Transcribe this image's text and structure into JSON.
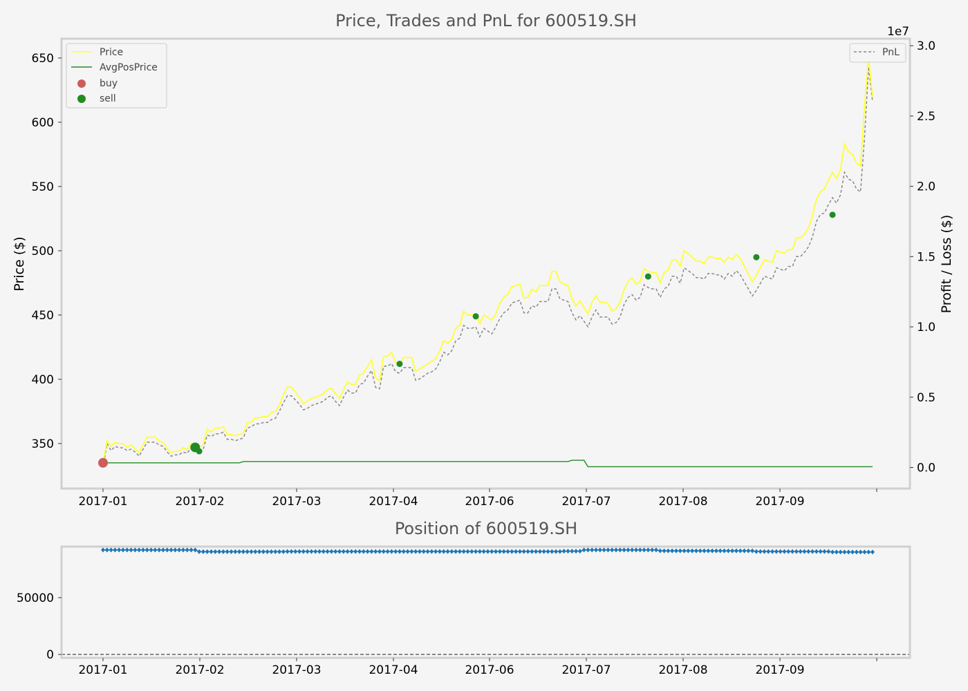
{
  "chart_data": [
    {
      "type": "line",
      "title": "Price, Trades and PnL for 600519.SH",
      "xlabel": "",
      "ylabel": "Price ($)",
      "y2label": "Profit / Loss ($)",
      "y2_exponent": "1e7",
      "ylim": [
        315,
        665
      ],
      "y2lim": [
        -0.15,
        3.05
      ],
      "yticks": [
        350,
        400,
        450,
        500,
        550,
        600,
        650
      ],
      "y2ticks": [
        "0.0",
        "0.5",
        "1.0",
        "1.5",
        "2.0",
        "2.5",
        "3.0"
      ],
      "x_tick_labels": [
        "2017-01",
        "2017-02",
        "2017-03",
        "2017-04",
        "2017-06",
        "2017-07",
        "2017-08",
        "2017-09"
      ],
      "legend_left": [
        "Price",
        "AvgPosPrice",
        "buy",
        "sell"
      ],
      "legend_right": [
        "PnL"
      ],
      "legend_left_position": "upper-left",
      "legend_right_position": "upper-right",
      "grid": false,
      "colors": {
        "price": "#ffff33",
        "avgpos": "#228b22",
        "pnl": "#888888",
        "buy": "#cd5c5c",
        "sell": "#228b22"
      },
      "series": [
        {
          "name": "Price",
          "y": [
            335,
            352,
            348,
            351,
            350,
            350,
            347,
            349,
            346,
            343,
            349,
            355,
            355,
            355,
            352,
            351,
            346,
            343,
            344,
            344,
            347,
            345,
            350,
            350,
            348,
            349,
            361,
            359,
            362,
            362,
            363,
            357,
            357,
            356,
            357,
            358,
            366,
            367,
            370,
            370,
            371,
            371,
            374,
            375,
            380,
            388,
            394,
            394,
            390,
            386,
            381,
            383,
            385,
            386,
            387,
            389,
            392,
            393,
            389,
            385,
            392,
            398,
            396,
            396,
            403,
            405,
            410,
            415,
            401,
            399,
            418,
            418,
            421,
            413,
            412,
            417,
            417,
            417,
            406,
            408,
            410,
            412,
            414,
            416,
            422,
            430,
            428,
            431,
            440,
            442,
            453,
            450,
            450,
            451,
            443,
            450,
            448,
            446,
            451,
            459,
            464,
            466,
            472,
            473,
            474,
            463,
            464,
            470,
            468,
            473,
            473,
            473,
            484,
            484,
            476,
            474,
            473,
            463,
            457,
            461,
            456,
            451,
            460,
            465,
            460,
            460,
            459,
            453,
            455,
            460,
            470,
            476,
            479,
            474,
            476,
            486,
            484,
            483,
            483,
            475,
            483,
            485,
            493,
            493,
            488,
            500,
            498,
            495,
            492,
            492,
            490,
            495,
            495,
            494,
            494,
            491,
            495,
            493,
            497,
            494,
            488,
            482,
            476,
            481,
            487,
            493,
            492,
            491,
            500,
            499,
            498,
            501,
            501,
            510,
            510,
            513,
            518,
            527,
            540,
            546,
            548,
            555,
            561,
            556,
            563,
            583,
            577,
            575,
            568,
            566,
            613,
            650,
            620
          ]
        },
        {
          "name": "AvgPosPrice",
          "y": [
            335,
            335,
            335,
            335,
            335,
            335,
            335,
            335,
            335,
            335,
            335,
            335,
            335,
            335,
            335,
            335,
            335,
            335,
            335,
            335,
            335,
            335,
            335,
            335,
            335,
            335,
            335,
            335,
            335,
            335,
            335,
            335,
            335,
            335,
            335,
            336,
            336,
            336,
            336,
            336,
            336,
            336,
            336,
            336,
            336,
            336,
            336,
            336,
            336,
            336,
            336,
            336,
            336,
            336,
            336,
            336,
            336,
            336,
            336,
            336,
            336,
            336,
            336,
            336,
            336,
            336,
            336,
            336,
            336,
            336,
            336,
            336,
            336,
            336,
            336,
            336,
            336,
            336,
            336,
            336,
            336,
            336,
            336,
            336,
            336,
            336,
            336,
            336,
            336,
            336,
            336,
            336,
            336,
            336,
            336,
            336,
            336,
            336,
            336,
            336,
            336,
            336,
            336,
            336,
            336,
            336,
            336,
            336,
            336,
            336,
            336,
            336,
            336,
            336,
            336,
            336,
            336,
            337,
            337,
            337,
            337,
            332,
            332,
            332,
            332,
            332,
            332,
            332,
            332,
            332,
            332,
            332,
            332,
            332,
            332,
            332,
            332,
            332,
            332,
            332,
            332,
            332,
            332,
            332,
            332,
            332,
            332,
            332,
            332,
            332,
            332,
            332,
            332,
            332,
            332,
            332,
            332,
            332,
            332,
            332,
            332,
            332,
            332,
            332,
            332,
            332,
            332,
            332,
            332,
            332,
            332,
            332,
            332,
            332,
            332,
            332,
            332,
            332,
            332,
            332,
            332,
            332,
            332,
            332,
            332,
            332,
            332,
            332,
            332,
            332,
            332,
            332,
            332
          ]
        },
        {
          "name": "PnL",
          "axis": "right",
          "y": [
            0.0,
            0.17,
            0.12,
            0.15,
            0.14,
            0.14,
            0.12,
            0.13,
            0.11,
            0.08,
            0.13,
            0.18,
            0.18,
            0.18,
            0.16,
            0.15,
            0.11,
            0.08,
            0.09,
            0.09,
            0.11,
            0.1,
            0.14,
            0.14,
            0.12,
            0.13,
            0.23,
            0.22,
            0.24,
            0.24,
            0.25,
            0.2,
            0.2,
            0.19,
            0.2,
            0.21,
            0.28,
            0.29,
            0.31,
            0.31,
            0.32,
            0.32,
            0.34,
            0.35,
            0.4,
            0.46,
            0.51,
            0.51,
            0.48,
            0.45,
            0.41,
            0.42,
            0.44,
            0.45,
            0.46,
            0.47,
            0.5,
            0.51,
            0.47,
            0.44,
            0.5,
            0.55,
            0.53,
            0.53,
            0.59,
            0.6,
            0.65,
            0.69,
            0.57,
            0.56,
            0.72,
            0.72,
            0.74,
            0.68,
            0.67,
            0.71,
            0.71,
            0.71,
            0.62,
            0.63,
            0.65,
            0.67,
            0.68,
            0.7,
            0.75,
            0.82,
            0.8,
            0.83,
            0.9,
            0.92,
            1.01,
            0.99,
            0.99,
            1.0,
            0.93,
            0.99,
            0.97,
            0.95,
            1.0,
            1.06,
            1.1,
            1.12,
            1.17,
            1.18,
            1.19,
            1.1,
            1.1,
            1.15,
            1.14,
            1.18,
            1.18,
            1.18,
            1.27,
            1.27,
            1.2,
            1.19,
            1.18,
            1.1,
            1.05,
            1.08,
            1.04,
            1.0,
            1.07,
            1.12,
            1.07,
            1.07,
            1.07,
            1.02,
            1.03,
            1.07,
            1.16,
            1.21,
            1.23,
            1.19,
            1.21,
            1.3,
            1.28,
            1.27,
            1.27,
            1.21,
            1.27,
            1.29,
            1.36,
            1.36,
            1.31,
            1.42,
            1.4,
            1.38,
            1.35,
            1.35,
            1.34,
            1.38,
            1.38,
            1.37,
            1.37,
            1.34,
            1.38,
            1.36,
            1.4,
            1.37,
            1.32,
            1.27,
            1.22,
            1.26,
            1.31,
            1.36,
            1.35,
            1.34,
            1.42,
            1.41,
            1.4,
            1.43,
            1.43,
            1.5,
            1.5,
            1.53,
            1.57,
            1.64,
            1.75,
            1.8,
            1.81,
            1.87,
            1.92,
            1.88,
            1.94,
            2.1,
            2.05,
            2.04,
            1.98,
            1.96,
            2.35,
            2.85,
            2.6
          ]
        }
      ],
      "buy": [
        {
          "i": 0,
          "y": 335
        }
      ],
      "sell": [
        {
          "i": 23,
          "y": 347,
          "big": true
        },
        {
          "i": 24,
          "y": 344
        },
        {
          "i": 74,
          "y": 412
        },
        {
          "i": 93,
          "y": 449
        },
        {
          "i": 136,
          "y": 480
        },
        {
          "i": 163,
          "y": 495
        },
        {
          "i": 182,
          "y": 528
        }
      ]
    },
    {
      "type": "scatter",
      "title": "Position of 600519.SH",
      "xlabel": "",
      "ylabel": "",
      "ylim": [
        -3000,
        95000
      ],
      "yticks": [
        0,
        50000
      ],
      "x_tick_labels": [
        "2017-01",
        "2017-02",
        "2017-03",
        "2017-04",
        "2017-06",
        "2017-07",
        "2017-08",
        "2017-09"
      ],
      "colors": {
        "marker": "#1f77b4",
        "zero_line": "#333333"
      },
      "series": [
        {
          "name": "Position",
          "segments": [
            {
              "from": 0,
              "to": 23,
              "value": 92000
            },
            {
              "from": 24,
              "to": 45,
              "value": 90500
            },
            {
              "from": 46,
              "to": 162,
              "value": 90700
            },
            {
              "from": 163,
              "to": 200,
              "value": 90200
            }
          ],
          "overrides": [
            {
              "from": 115,
              "to": 119,
              "value": 91000
            },
            {
              "from": 120,
              "to": 138,
              "value": 92000
            },
            {
              "from": 139,
              "to": 162,
              "value": 91300
            },
            {
              "from": 163,
              "to": 181,
              "value": 90700
            },
            {
              "from": 182,
              "to": 200,
              "value": 90200
            }
          ]
        }
      ]
    }
  ]
}
